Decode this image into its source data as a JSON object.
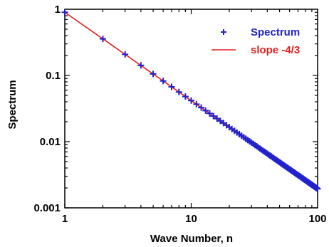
{
  "chart_data": {
    "type": "scatter",
    "title": "",
    "xlabel": "Wave Number, n",
    "ylabel": "Spectrum",
    "xscale": "log",
    "yscale": "log",
    "xlim": [
      1,
      100
    ],
    "ylim": [
      0.001,
      1
    ],
    "grid": false,
    "legend_position": "top-right",
    "x_ticks": [
      {
        "value": 1,
        "label": "1"
      },
      {
        "value": 10,
        "label": "10"
      },
      {
        "value": 100,
        "label": "100"
      }
    ],
    "y_ticks": [
      {
        "value": 0.001,
        "label": "0.001"
      },
      {
        "value": 0.01,
        "label": "0.01"
      },
      {
        "value": 0.1,
        "label": "0.1"
      },
      {
        "value": 1,
        "label": "1"
      }
    ],
    "series": [
      {
        "name": "Spectrum",
        "kind": "scatter",
        "marker": "plus",
        "color": "#2222cc",
        "x_from": 1,
        "x_to": 100,
        "x_step": 1,
        "y_formula": "0.9 * n^(-4/3)"
      },
      {
        "name": "slope -4/3",
        "kind": "line",
        "color": "#e02020",
        "x": [
          1,
          100
        ],
        "y": [
          0.9,
          0.00194
        ]
      }
    ]
  }
}
